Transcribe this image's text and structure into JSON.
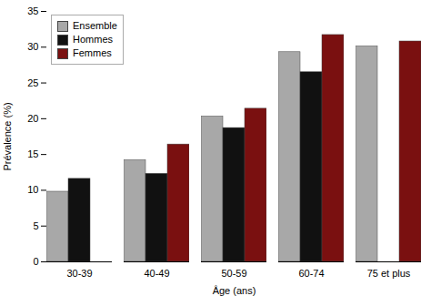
{
  "chart_data": {
    "type": "bar",
    "categories": [
      "30-39",
      "40-49",
      "50-59",
      "60-74",
      "75 et plus"
    ],
    "series": [
      {
        "name": "Ensemble",
        "color": "#a8a8a8",
        "values": [
          9.8,
          14.2,
          20.3,
          29.3,
          30.1
        ]
      },
      {
        "name": "Hommes",
        "color": "#111111",
        "values": [
          11.6,
          12.3,
          18.7,
          26.5,
          null
        ]
      },
      {
        "name": "Femmes",
        "color": "#7a1010",
        "values": [
          null,
          16.4,
          21.4,
          31.7,
          30.8
        ]
      }
    ],
    "xlabel": "Âge (ans)",
    "ylabel": "Prévalence (%)",
    "ylim": [
      0,
      35
    ],
    "yticks": [
      0,
      5,
      10,
      15,
      20,
      25,
      30,
      35
    ],
    "grid": false,
    "legend": "upper left"
  }
}
